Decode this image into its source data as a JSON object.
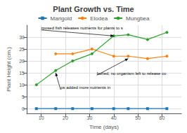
{
  "chart_data": {
    "type": "line",
    "title": "Plant Growth vs. Time",
    "xlabel": "Time (days)",
    "ylabel": "Plant Height (cm.)",
    "x": [
      8,
      16,
      23,
      31,
      40,
      46,
      54,
      62
    ],
    "series": [
      {
        "name": "Marigold",
        "color": "#1f77b4",
        "marker": "square",
        "values": [
          0,
          0,
          0,
          0,
          0,
          0,
          0,
          0
        ]
      },
      {
        "name": "Elodea",
        "color": "#ff7f0e",
        "marker": "circle",
        "values": [
          null,
          23,
          23,
          25,
          22,
          22,
          21,
          22
        ]
      },
      {
        "name": "Mungbea",
        "color": "#2ca02c",
        "marker": "circle",
        "values": [
          10,
          16,
          20,
          23,
          30.5,
          31,
          29,
          32
        ]
      }
    ],
    "xlim": [
      4,
      68
    ],
    "ylim": [
      -2,
      35
    ],
    "xticks": [
      10,
      20,
      30,
      40,
      50,
      60
    ],
    "yticks": [
      0,
      5,
      10,
      15,
      20,
      25,
      30
    ],
    "grid": true,
    "legend": "top",
    "annotations": [
      {
        "text": "rposed fish releases nutrients for plants to s",
        "xy": [
          40,
          30.5
        ],
        "xytext": [
          10,
          33
        ]
      },
      {
        "text": "ps added more nutrients in",
        "xy": [
          16,
          15
        ],
        "xytext": [
          18,
          8
        ]
      },
      {
        "text": "buried, no organism left to release co",
        "xy": [
          46,
          21
        ],
        "xytext": [
          33,
          14
        ]
      }
    ]
  }
}
